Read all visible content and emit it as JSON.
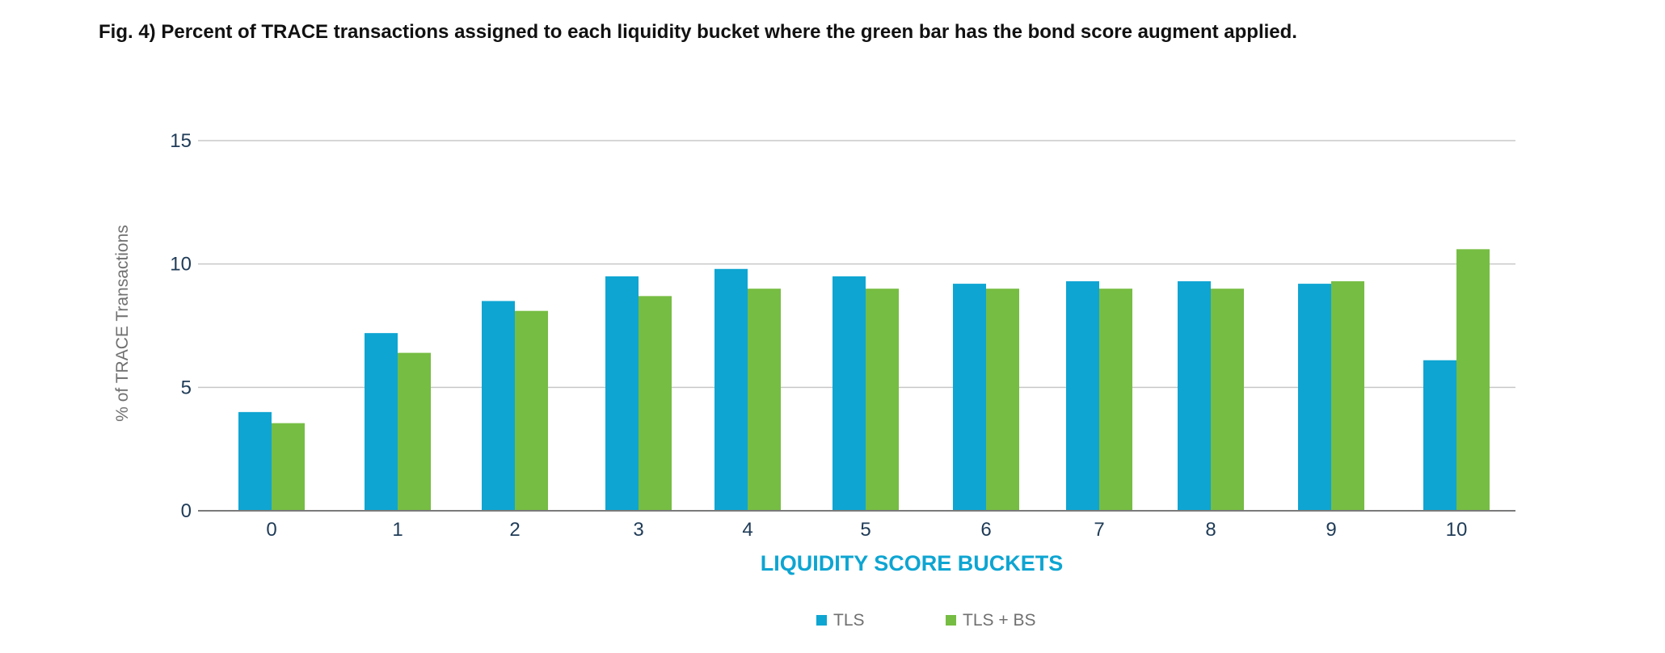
{
  "figure": {
    "title": "Fig. 4) Percent of TRACE transactions assigned to each liquidity bucket where the green bar has the bond score augment applied."
  },
  "chart_data": {
    "type": "bar",
    "categories": [
      "0",
      "1",
      "2",
      "3",
      "4",
      "5",
      "6",
      "7",
      "8",
      "9",
      "10"
    ],
    "series": [
      {
        "name": "TLS",
        "color": "#0ea5d2",
        "values": [
          4.0,
          7.2,
          8.5,
          9.5,
          9.8,
          9.5,
          9.2,
          9.3,
          9.3,
          9.2,
          6.1
        ]
      },
      {
        "name": "TLS + BS",
        "color": "#76bd43",
        "values": [
          3.55,
          6.4,
          8.1,
          8.7,
          9.0,
          9.0,
          9.0,
          9.0,
          9.0,
          9.3,
          10.6
        ]
      }
    ],
    "xlabel": "LIQUIDITY SCORE BUCKETS",
    "ylabel": "% of TRACE Transactions",
    "ylim": [
      0,
      15
    ],
    "yticks": [
      0,
      5,
      10,
      15
    ],
    "grid": true,
    "legend": "bottom-center",
    "xlabel_color": "#0ea5d2",
    "gridline_color": "#c8c8c8"
  }
}
